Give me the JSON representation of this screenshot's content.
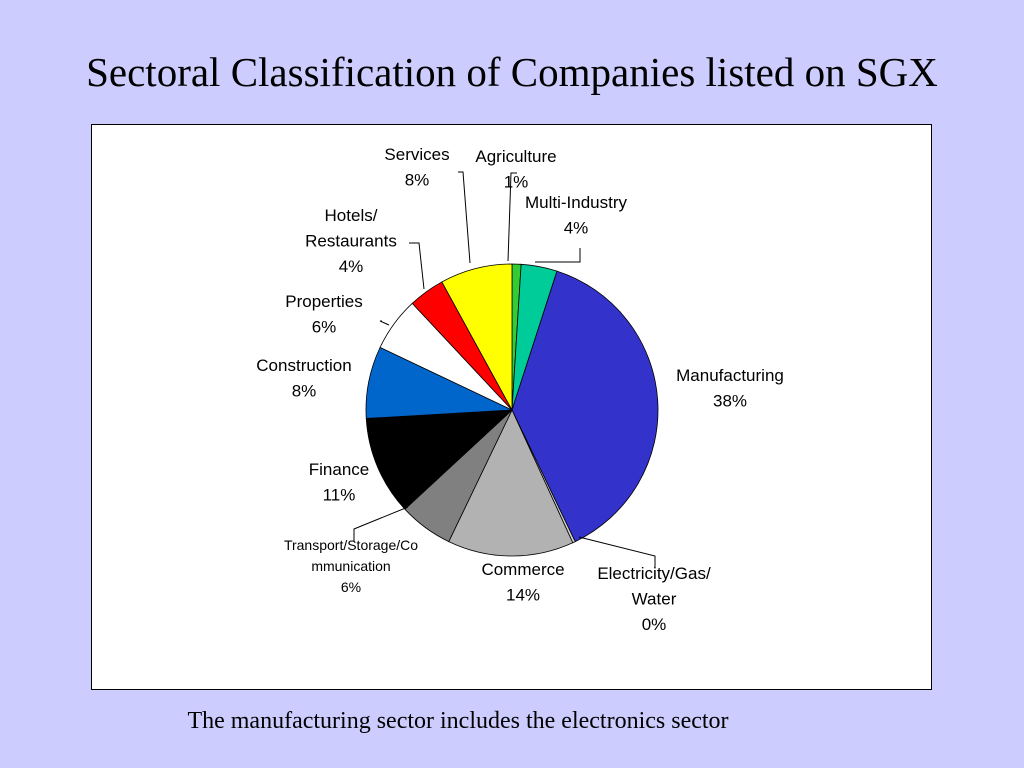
{
  "title": "Sectoral Classification of Companies listed on SGX",
  "caption": "The manufacturing sector includes the electronics sector",
  "chart_data": {
    "type": "pie",
    "slices": [
      {
        "name": "Agriculture",
        "value": 1,
        "label": "1%",
        "color": "#33CC33"
      },
      {
        "name": "Multi-Industry",
        "value": 4,
        "label": "4%",
        "color": "#00CC99"
      },
      {
        "name": "Manufacturing",
        "value": 38,
        "label": "38%",
        "color": "#3333CC"
      },
      {
        "name": "Electricity/Gas/\nWater",
        "value": 0.3,
        "label": "0%",
        "color": "#CCCCCC"
      },
      {
        "name": "Commerce",
        "value": 14,
        "label": "14%",
        "color": "#B2B2B2"
      },
      {
        "name": "Transport/Storage/Co\nmmunication",
        "value": 6,
        "label": "6%",
        "color": "#808080"
      },
      {
        "name": "Finance",
        "value": 11,
        "label": "11%",
        "color": "#000000"
      },
      {
        "name": "Construction",
        "value": 8,
        "label": "8%",
        "color": "#0066CC"
      },
      {
        "name": "Properties",
        "value": 6,
        "label": "6%",
        "color": "#FFFFFF"
      },
      {
        "name": "Hotels/\nRestaurants",
        "value": 4,
        "label": "4%",
        "color": "#FF0000"
      },
      {
        "name": "Services",
        "value": 8,
        "label": "8%",
        "color": "#FFFF00"
      }
    ]
  }
}
